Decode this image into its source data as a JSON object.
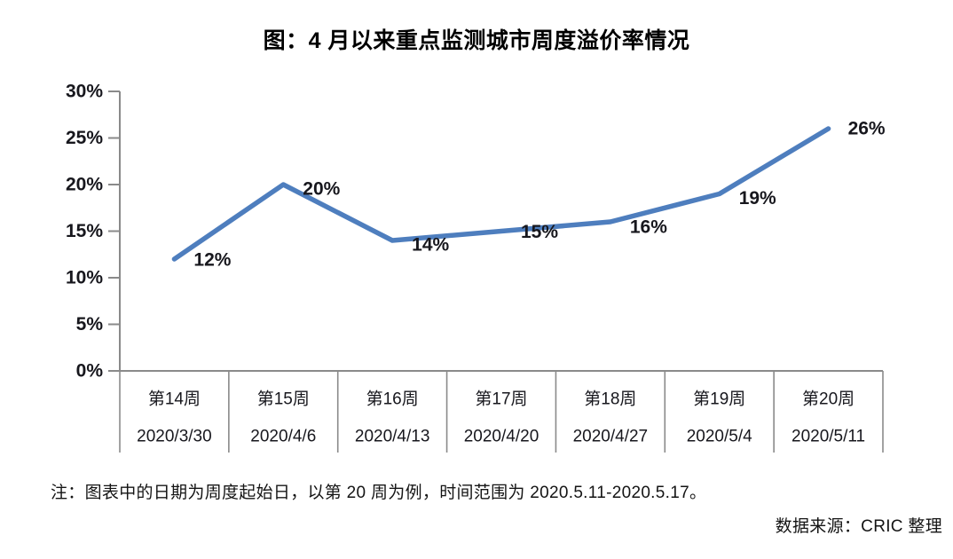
{
  "page": {
    "title": "图：4 月以来重点监测城市周度溢价率情况",
    "note": "注：图表中的日期为周度起始日，以第 20 周为例，时间范围为 2020.5.11-2020.5.17。",
    "source": "数据来源：CRIC 整理"
  },
  "colors": {
    "line": "#4E7EBE",
    "axis": "#8A8A8A",
    "label_text": "#17171d"
  },
  "chart_data": {
    "type": "line",
    "title": "图：4 月以来重点监测城市周度溢价率情况",
    "categories": [
      "第14周",
      "第15周",
      "第16周",
      "第17周",
      "第18周",
      "第19周",
      "第20周"
    ],
    "category_dates": [
      "2020/3/30",
      "2020/4/6",
      "2020/4/13",
      "2020/4/20",
      "2020/4/27",
      "2020/5/4",
      "2020/5/11"
    ],
    "values": [
      12,
      20,
      14,
      15,
      16,
      19,
      26
    ],
    "data_labels": [
      "12%",
      "20%",
      "14%",
      "15%",
      "16%",
      "19%",
      "26%"
    ],
    "y_ticks": [
      0,
      5,
      10,
      15,
      20,
      25,
      30
    ],
    "y_tick_labels": [
      "0%",
      "5%",
      "10%",
      "15%",
      "20%",
      "25%",
      "30%"
    ],
    "ylim": [
      0,
      30
    ],
    "xlabel": "",
    "ylabel": "",
    "grid": false,
    "legend": "none"
  }
}
